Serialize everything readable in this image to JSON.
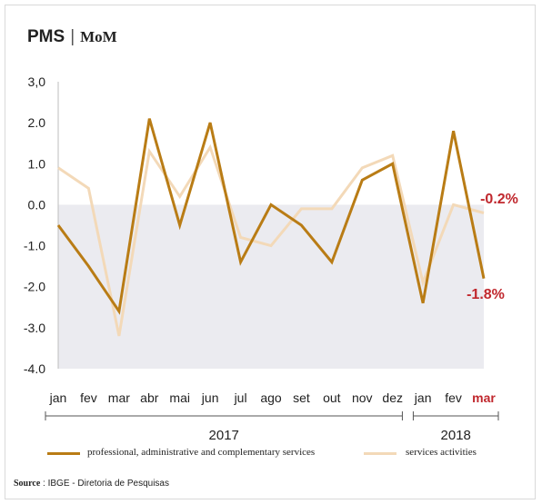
{
  "title": {
    "main": "PMS",
    "separator": "|",
    "sub": "MoM"
  },
  "chart_data": {
    "type": "line",
    "x": [
      "jan",
      "fev",
      "mar",
      "abr",
      "mai",
      "jun",
      "jul",
      "ago",
      "set",
      "out",
      "nov",
      "dez",
      "jan",
      "fev",
      "mar"
    ],
    "highlight_x_index": 14,
    "y_ticks": [
      "3,0",
      "2.0",
      "1.0",
      "0.0",
      "-1.0",
      "-2.0",
      "-3.0",
      "-4.0"
    ],
    "y_tick_values": [
      3,
      2,
      1,
      0,
      -1,
      -2,
      -3,
      -4
    ],
    "ylim": [
      -4,
      3
    ],
    "year_groups": [
      {
        "label": "2017",
        "start": 0,
        "end": 11
      },
      {
        "label": "2018",
        "start": 12,
        "end": 14
      }
    ],
    "series": [
      {
        "name": "professional, administrative and complementary services",
        "color": "#b97c15",
        "values": [
          -0.5,
          -1.5,
          -2.6,
          2.1,
          -0.5,
          2.0,
          -1.4,
          0.0,
          -0.5,
          -1.4,
          0.6,
          1.0,
          -2.4,
          1.8,
          -1.8
        ],
        "end_label": "-1.8%"
      },
      {
        "name": "services activities",
        "color": "#f3d9b8",
        "values": [
          0.9,
          0.4,
          -3.2,
          1.3,
          0.2,
          1.4,
          -0.8,
          -1.0,
          -0.1,
          -0.1,
          0.9,
          1.2,
          -1.9,
          0.0,
          -0.2
        ],
        "end_label": "-0.2%"
      }
    ],
    "negative_region_color": "#ebebf0",
    "highlight_color": "#c0272d"
  },
  "source": {
    "label": "Source",
    "text": ": IBGE - Diretoria de Pesquisas"
  }
}
